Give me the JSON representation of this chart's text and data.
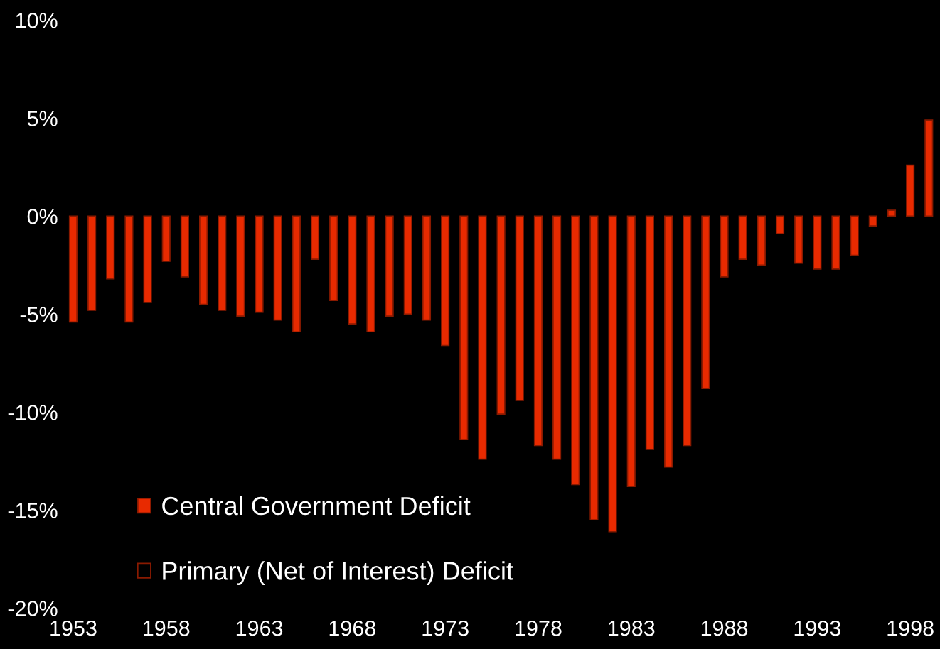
{
  "chart_data": {
    "type": "bar",
    "x": [
      1953,
      1954,
      1955,
      1956,
      1957,
      1958,
      1959,
      1960,
      1961,
      1962,
      1963,
      1964,
      1965,
      1966,
      1967,
      1968,
      1969,
      1970,
      1971,
      1972,
      1973,
      1974,
      1975,
      1976,
      1977,
      1978,
      1979,
      1980,
      1981,
      1982,
      1983,
      1984,
      1985,
      1986,
      1987,
      1988,
      1989,
      1990,
      1991,
      1992,
      1993,
      1994,
      1995,
      1996,
      1997,
      1998,
      1999
    ],
    "series": [
      {
        "name": "Central Government Deficit",
        "color": "#e82a00",
        "values": [
          -5.4,
          -4.8,
          -3.2,
          -5.4,
          -4.4,
          -2.3,
          -3.1,
          -4.5,
          -4.8,
          -5.1,
          -4.9,
          -5.3,
          -5.9,
          -2.2,
          -4.3,
          -5.5,
          -5.9,
          -5.1,
          -5.0,
          -5.3,
          -6.6,
          -11.4,
          -12.4,
          -10.1,
          -9.4,
          -11.7,
          -12.4,
          -13.7,
          -15.5,
          -16.1,
          -13.8,
          -11.9,
          -12.8,
          -11.7,
          -8.8,
          -3.1,
          -2.2,
          -2.5,
          -0.9,
          -2.4,
          -2.7,
          -2.7,
          -2.0,
          -0.5,
          0.3,
          2.6,
          4.9
        ]
      },
      {
        "name": "Primary (Net of Interest) Deficit",
        "color": "#000000",
        "values": [
          null,
          null,
          null,
          null,
          null,
          null,
          null,
          null,
          null,
          null,
          null,
          null,
          null,
          null,
          null,
          null,
          null,
          null,
          null,
          null,
          null,
          null,
          null,
          null,
          null,
          null,
          null,
          null,
          null,
          null,
          null,
          null,
          null,
          null,
          null,
          null,
          null,
          null,
          null,
          null,
          null,
          null,
          null,
          null,
          null,
          null,
          null
        ]
      }
    ],
    "xlim": [
      1952.4,
      1999.6
    ],
    "xticks": [
      1953,
      1958,
      1963,
      1968,
      1973,
      1978,
      1983,
      1988,
      1993,
      1998
    ],
    "ylim": [
      -20,
      10
    ],
    "yticks": [
      {
        "value": 10,
        "label": "10%"
      },
      {
        "value": 5,
        "label": "5%"
      },
      {
        "value": 0,
        "label": "0%"
      },
      {
        "value": -5,
        "label": "-5%"
      },
      {
        "value": -10,
        "label": "-10%"
      },
      {
        "value": -15,
        "label": "-15%"
      },
      {
        "value": -20,
        "label": "-20%"
      }
    ],
    "grid": false,
    "legend": "bottom left"
  }
}
